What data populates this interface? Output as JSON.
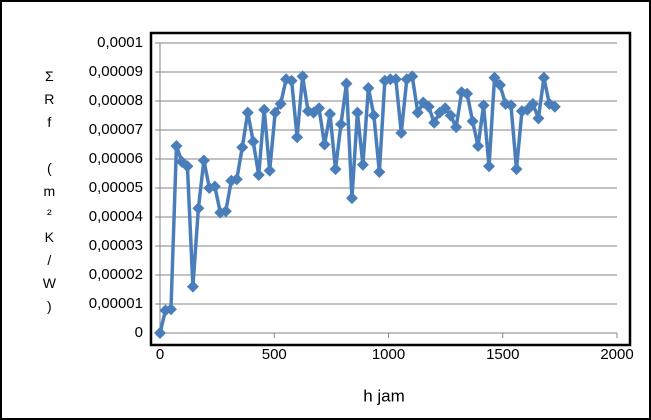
{
  "chart_data": {
    "type": "line",
    "x_label": "h jam",
    "y_label": "ΣRf (m²K/W)",
    "color": "#4a7ebb",
    "grid": true,
    "xlim": [
      0,
      2000
    ],
    "xticks": [
      0,
      500,
      1000,
      1500,
      2000
    ],
    "ylim": [
      0,
      0.0001
    ],
    "yticks": [
      0,
      {
        "value": 1e-05,
        "label": "0,00001"
      },
      {
        "value": 2e-05,
        "label": "0,00002"
      },
      {
        "value": 3e-05,
        "label": "0,00003"
      },
      {
        "value": 4e-05,
        "label": "0,00004"
      },
      {
        "value": 5e-05,
        "label": "0,00005"
      },
      {
        "value": 6e-05,
        "label": "0,00006"
      },
      {
        "value": 7e-05,
        "label": "0,00007"
      },
      {
        "value": 8e-05,
        "label": "0,00008"
      },
      {
        "value": 9e-05,
        "label": "0,00009"
      },
      {
        "value": 0.0001,
        "label": "0,0001"
      }
    ],
    "x": [
      0,
      24,
      48,
      72,
      96,
      120,
      144,
      168,
      192,
      216,
      240,
      264,
      288,
      312,
      336,
      360,
      384,
      408,
      432,
      456,
      480,
      504,
      528,
      552,
      576,
      600,
      624,
      648,
      672,
      696,
      720,
      744,
      768,
      792,
      816,
      840,
      864,
      888,
      912,
      936,
      960,
      984,
      1008,
      1032,
      1056,
      1080,
      1104,
      1128,
      1152,
      1176,
      1200,
      1224,
      1248,
      1272,
      1296,
      1320,
      1344,
      1368,
      1392,
      1416,
      1440,
      1464,
      1488,
      1512,
      1536,
      1560,
      1584,
      1608,
      1632,
      1656,
      1680,
      1704,
      1728
    ],
    "values": [
      0,
      7.8e-06,
      8.2e-06,
      6.45e-05,
      5.9e-05,
      5.75e-05,
      1.6e-05,
      4.3e-05,
      5.95e-05,
      5e-05,
      5.05e-05,
      4.15e-05,
      4.2e-05,
      5.25e-05,
      5.3e-05,
      6.4e-05,
      7.6e-05,
      6.6e-05,
      5.45e-05,
      7.7e-05,
      5.6e-05,
      7.6e-05,
      7.9e-05,
      8.75e-05,
      8.7e-05,
      6.75e-05,
      8.85e-05,
      7.65e-05,
      7.6e-05,
      7.75e-05,
      6.5e-05,
      7.55e-05,
      5.65e-05,
      7.2e-05,
      8.6e-05,
      4.65e-05,
      7.6e-05,
      5.8e-05,
      8.45e-05,
      7.5e-05,
      5.55e-05,
      8.7e-05,
      8.75e-05,
      8.75e-05,
      6.9e-05,
      8.75e-05,
      8.85e-05,
      7.6e-05,
      7.95e-05,
      7.8e-05,
      7.25e-05,
      7.6e-05,
      7.75e-05,
      7.5e-05,
      7.1e-05,
      8.3e-05,
      8.25e-05,
      7.3e-05,
      6.45e-05,
      7.85e-05,
      5.75e-05,
      8.8e-05,
      8.55e-05,
      7.9e-05,
      7.85e-05,
      5.65e-05,
      7.65e-05,
      7.7e-05,
      7.9e-05,
      7.4e-05,
      8.8e-05,
      7.9e-05,
      7.8e-05
    ]
  }
}
